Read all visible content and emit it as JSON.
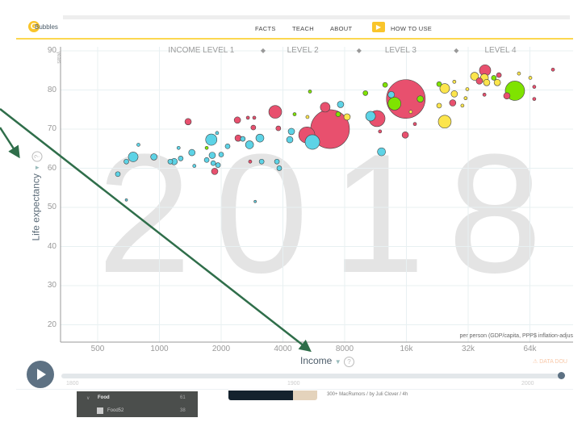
{
  "header": {
    "brand": "Bubbles",
    "nav": [
      "FACTS",
      "TEACH",
      "ABOUT"
    ],
    "how_to_use": "HOW TO USE"
  },
  "chart_data": {
    "type": "scatter",
    "year": "2018",
    "xlabel": "Income",
    "xnote": "per person (GDP/capita, PPP$ inflation-adjus",
    "ylabel": "Life expectancy",
    "yunit": "years",
    "x_scale": "log",
    "xlim": [
      300,
      100000
    ],
    "ylim": [
      17,
      91
    ],
    "x_ticks": [
      500,
      1000,
      2000,
      4000,
      8000,
      16000,
      32000,
      64000
    ],
    "x_tick_labels": [
      "500",
      "1000",
      "2000",
      "4000",
      "8000",
      "16k",
      "32k",
      "64k"
    ],
    "y_ticks": [
      20,
      30,
      40,
      50,
      60,
      70,
      80,
      90
    ],
    "y_tick_labels": [
      "20",
      "30",
      "40",
      "50",
      "60",
      "70",
      "80",
      "90"
    ],
    "income_levels": [
      {
        "label": "INCOME LEVEL 1",
        "center": 1600
      },
      {
        "label": "LEVEL 2",
        "center": 5000
      },
      {
        "label": "LEVEL 3",
        "center": 15000
      },
      {
        "label": "LEVEL 4",
        "center": 46000
      }
    ],
    "level_boundaries": [
      3200,
      9400,
      28000
    ],
    "grid": true,
    "region_colors": {
      "blue": "#5dd3e6",
      "red": "#e8506e",
      "yellow": "#fce54c",
      "green": "#7fe300"
    },
    "bubble_fields": [
      "income",
      "life_expectancy",
      "population_millions",
      "color"
    ],
    "bubbles": [
      [
        6790,
        70.0,
        1270,
        "red"
      ],
      [
        15900,
        77.7,
        1270,
        "red"
      ],
      [
        54100,
        79.8,
        317,
        "green"
      ],
      [
        5230,
        68.5,
        220,
        "red"
      ],
      [
        11500,
        72.7,
        220,
        "red"
      ],
      [
        5570,
        66.7,
        180,
        "blue"
      ],
      [
        24600,
        71.9,
        140,
        "yellow"
      ],
      [
        14000,
        76.5,
        140,
        "green"
      ],
      [
        3670,
        74.4,
        140,
        "red"
      ],
      [
        38700,
        85.0,
        108,
        "red"
      ],
      [
        1790,
        67.3,
        108,
        "blue"
      ],
      [
        745,
        62.9,
        80,
        "blue"
      ],
      [
        6430,
        75.6,
        80,
        "red"
      ],
      [
        10700,
        73.3,
        80,
        "blue"
      ],
      [
        24600,
        80.4,
        80,
        "yellow"
      ],
      [
        12100,
        64.2,
        55,
        "blue"
      ],
      [
        2750,
        66.0,
        55,
        "blue"
      ],
      [
        3090,
        67.7,
        55,
        "blue"
      ],
      [
        34400,
        83.5,
        55,
        "yellow"
      ],
      [
        38400,
        83.1,
        55,
        "yellow"
      ],
      [
        940,
        62.9,
        35,
        "blue"
      ],
      [
        1180,
        61.7,
        35,
        "blue"
      ],
      [
        1440,
        64.0,
        35,
        "blue"
      ],
      [
        1810,
        63.3,
        35,
        "blue"
      ],
      [
        1860,
        59.2,
        35,
        "red"
      ],
      [
        1380,
        71.9,
        35,
        "red"
      ],
      [
        2400,
        72.3,
        35,
        "red"
      ],
      [
        2420,
        67.7,
        35,
        "red"
      ],
      [
        4320,
        67.3,
        35,
        "blue"
      ],
      [
        4400,
        69.4,
        35,
        "blue"
      ],
      [
        7640,
        76.3,
        35,
        "blue"
      ],
      [
        8220,
        73.1,
        35,
        "yellow"
      ],
      [
        15800,
        68.5,
        35,
        "red"
      ],
      [
        18700,
        77.7,
        35,
        "green"
      ],
      [
        13500,
        78.8,
        35,
        "blue"
      ],
      [
        27400,
        79.0,
        35,
        "yellow"
      ],
      [
        26900,
        76.7,
        35,
        "red"
      ],
      [
        36300,
        82.3,
        35,
        "red"
      ],
      [
        39400,
        81.9,
        35,
        "yellow"
      ],
      [
        44400,
        81.9,
        35,
        "yellow"
      ],
      [
        49400,
        78.5,
        35,
        "red"
      ],
      [
        690,
        61.7,
        20,
        "blue"
      ],
      [
        627,
        58.5,
        20,
        "blue"
      ],
      [
        1130,
        61.7,
        20,
        "blue"
      ],
      [
        1270,
        62.5,
        20,
        "blue"
      ],
      [
        1700,
        62.1,
        20,
        "blue"
      ],
      [
        1830,
        61.3,
        20,
        "blue"
      ],
      [
        1930,
        60.8,
        20,
        "blue"
      ],
      [
        2000,
        63.5,
        20,
        "blue"
      ],
      [
        2150,
        65.6,
        20,
        "blue"
      ],
      [
        2550,
        67.5,
        20,
        "blue"
      ],
      [
        2870,
        70.4,
        20,
        "red"
      ],
      [
        3800,
        70.2,
        20,
        "red"
      ],
      [
        3150,
        61.7,
        20,
        "blue"
      ],
      [
        3740,
        61.7,
        20,
        "blue"
      ],
      [
        3840,
        60.0,
        20,
        "blue"
      ],
      [
        7440,
        73.8,
        20,
        "green"
      ],
      [
        12600,
        81.3,
        20,
        "green"
      ],
      [
        10100,
        79.2,
        20,
        "green"
      ],
      [
        23100,
        81.5,
        20,
        "green"
      ],
      [
        23100,
        76.0,
        20,
        "yellow"
      ],
      [
        45200,
        83.8,
        20,
        "red"
      ],
      [
        42700,
        83.1,
        20,
        "green"
      ],
      [
        790,
        66.0,
        9,
        "blue"
      ],
      [
        1240,
        65.2,
        9,
        "blue"
      ],
      [
        1480,
        60.6,
        9,
        "blue"
      ],
      [
        1910,
        69.0,
        9,
        "blue"
      ],
      [
        1700,
        65.2,
        9,
        "green"
      ],
      [
        2700,
        72.9,
        9,
        "red"
      ],
      [
        2900,
        72.9,
        9,
        "red"
      ],
      [
        2770,
        61.7,
        9,
        "red"
      ],
      [
        4560,
        73.8,
        9,
        "green"
      ],
      [
        5270,
        73.1,
        9,
        "yellow"
      ],
      [
        5420,
        79.6,
        9,
        "green"
      ],
      [
        16800,
        74.4,
        9,
        "yellow"
      ],
      [
        17600,
        71.3,
        9,
        "red"
      ],
      [
        11900,
        69.4,
        9,
        "red"
      ],
      [
        38400,
        78.8,
        9,
        "red"
      ],
      [
        31700,
        80.2,
        9,
        "yellow"
      ],
      [
        31100,
        77.9,
        9,
        "yellow"
      ],
      [
        27400,
        82.1,
        9,
        "yellow"
      ],
      [
        30000,
        76.0,
        9,
        "yellow"
      ],
      [
        56600,
        84.2,
        9,
        "yellow"
      ],
      [
        64300,
        83.1,
        9,
        "yellow"
      ],
      [
        67200,
        80.8,
        9,
        "red"
      ],
      [
        67200,
        77.7,
        9,
        "red"
      ],
      [
        82900,
        85.2,
        9,
        "red"
      ],
      [
        690,
        51.9,
        5,
        "blue"
      ],
      [
        2930,
        51.5,
        5,
        "blue"
      ]
    ]
  },
  "y_help": "?",
  "x_help": "?",
  "data_doubts": "DATA DOU",
  "timeline": {
    "labels": [
      "1800",
      "1900",
      "2000"
    ],
    "value": 2018
  },
  "background_page": {
    "folder": "Food",
    "folder_count": "61",
    "feed": "Food52",
    "feed_count": "38",
    "news_meta": "300+ MacRumors / by Juli Clover / 4h"
  }
}
